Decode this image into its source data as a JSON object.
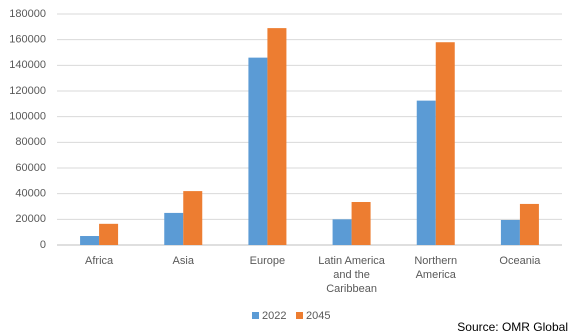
{
  "chart_data": {
    "type": "bar",
    "categories": [
      "Africa",
      "Asia",
      "Europe",
      "Latin America and the Caribbean",
      "Northern America",
      "Oceania"
    ],
    "series": [
      {
        "name": "2022",
        "color": "#5b9bd5",
        "values": [
          7000,
          25000,
          146000,
          20000,
          112500,
          19500
        ]
      },
      {
        "name": "2045",
        "color": "#ed7d31",
        "values": [
          16500,
          42000,
          169000,
          33500,
          158000,
          32000
        ]
      }
    ],
    "ylim": [
      0,
      180000
    ],
    "yticks": [
      0,
      20000,
      40000,
      60000,
      80000,
      100000,
      120000,
      140000,
      160000,
      180000
    ],
    "grid": true,
    "legend": "bottom",
    "source": "Source: OMR Global"
  }
}
